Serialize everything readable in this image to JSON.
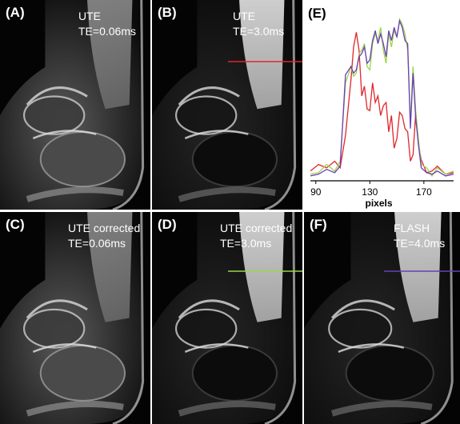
{
  "panels": [
    {
      "label": "(A)",
      "text": [
        "UTE",
        "TE=0.06ms"
      ],
      "brightness": "bright",
      "line_color": ""
    },
    {
      "label": "(B)",
      "text": [
        "UTE",
        "TE=3.0ms"
      ],
      "brightness": "dark",
      "line_color": "#e0262b"
    },
    {
      "label": "(C)",
      "text": [
        "UTE corrected",
        "TE=0.06ms"
      ],
      "brightness": "bright",
      "line_color": ""
    },
    {
      "label": "(D)",
      "text": [
        "UTE corrected",
        "TE=3.0ms"
      ],
      "brightness": "dark",
      "line_color": "#9bd54a"
    },
    {
      "label": "(F)",
      "text": [
        "FLASH",
        "TE=4.0ms"
      ],
      "brightness": "dark",
      "line_color": "#6a3fb8"
    }
  ],
  "chart": {
    "label": "(E)"
  },
  "chart_data": {
    "type": "line",
    "xlabel": "pixels",
    "ylabel": "",
    "xlim": [
      86,
      192
    ],
    "ylim": [
      0,
      1
    ],
    "xticks": [
      90,
      130,
      170
    ],
    "grid": false,
    "series": [
      {
        "color": "#e0262b",
        "x": [
          86,
          92,
          98,
          104,
          108,
          112,
          116,
          118,
          120,
          122,
          124,
          126,
          128,
          130,
          132,
          134,
          136,
          138,
          140,
          142,
          144,
          146,
          148,
          150,
          152,
          154,
          156,
          158,
          160,
          162,
          164,
          166,
          168,
          172,
          176,
          180,
          186,
          192
        ],
        "y": [
          0.06,
          0.1,
          0.08,
          0.12,
          0.08,
          0.28,
          0.62,
          0.82,
          0.91,
          0.8,
          0.52,
          0.58,
          0.44,
          0.43,
          0.6,
          0.48,
          0.52,
          0.4,
          0.46,
          0.48,
          0.3,
          0.4,
          0.2,
          0.26,
          0.42,
          0.4,
          0.32,
          0.3,
          0.12,
          0.16,
          0.42,
          0.22,
          0.13,
          0.05,
          0.06,
          0.09,
          0.04,
          0.05
        ]
      },
      {
        "color": "#9bd54a",
        "x": [
          86,
          92,
          98,
          104,
          108,
          112,
          116,
          118,
          120,
          122,
          124,
          126,
          128,
          130,
          132,
          134,
          136,
          138,
          140,
          142,
          144,
          146,
          148,
          150,
          152,
          154,
          156,
          158,
          160,
          162,
          164,
          166,
          168,
          172,
          176,
          180,
          186,
          192
        ],
        "y": [
          0.04,
          0.05,
          0.1,
          0.06,
          0.12,
          0.6,
          0.7,
          0.64,
          0.66,
          0.78,
          0.8,
          0.84,
          0.7,
          0.68,
          0.84,
          0.9,
          0.86,
          0.94,
          0.8,
          0.72,
          0.9,
          0.82,
          0.92,
          0.88,
          0.99,
          0.96,
          0.9,
          0.8,
          0.36,
          0.7,
          0.42,
          0.25,
          0.1,
          0.08,
          0.03,
          0.08,
          0.04,
          0.06
        ]
      },
      {
        "color": "#6a3fb8",
        "x": [
          86,
          92,
          98,
          104,
          108,
          112,
          116,
          118,
          120,
          122,
          124,
          126,
          128,
          130,
          132,
          134,
          136,
          138,
          140,
          142,
          144,
          146,
          148,
          150,
          152,
          154,
          156,
          158,
          160,
          162,
          164,
          166,
          168,
          172,
          176,
          180,
          186,
          192
        ],
        "y": [
          0.03,
          0.04,
          0.07,
          0.05,
          0.09,
          0.65,
          0.7,
          0.66,
          0.68,
          0.76,
          0.78,
          0.82,
          0.72,
          0.74,
          0.86,
          0.92,
          0.84,
          0.9,
          0.84,
          0.76,
          0.92,
          0.86,
          0.94,
          0.88,
          0.98,
          0.94,
          0.86,
          0.84,
          0.32,
          0.66,
          0.38,
          0.22,
          0.08,
          0.05,
          0.04,
          0.06,
          0.03,
          0.04
        ]
      }
    ]
  }
}
